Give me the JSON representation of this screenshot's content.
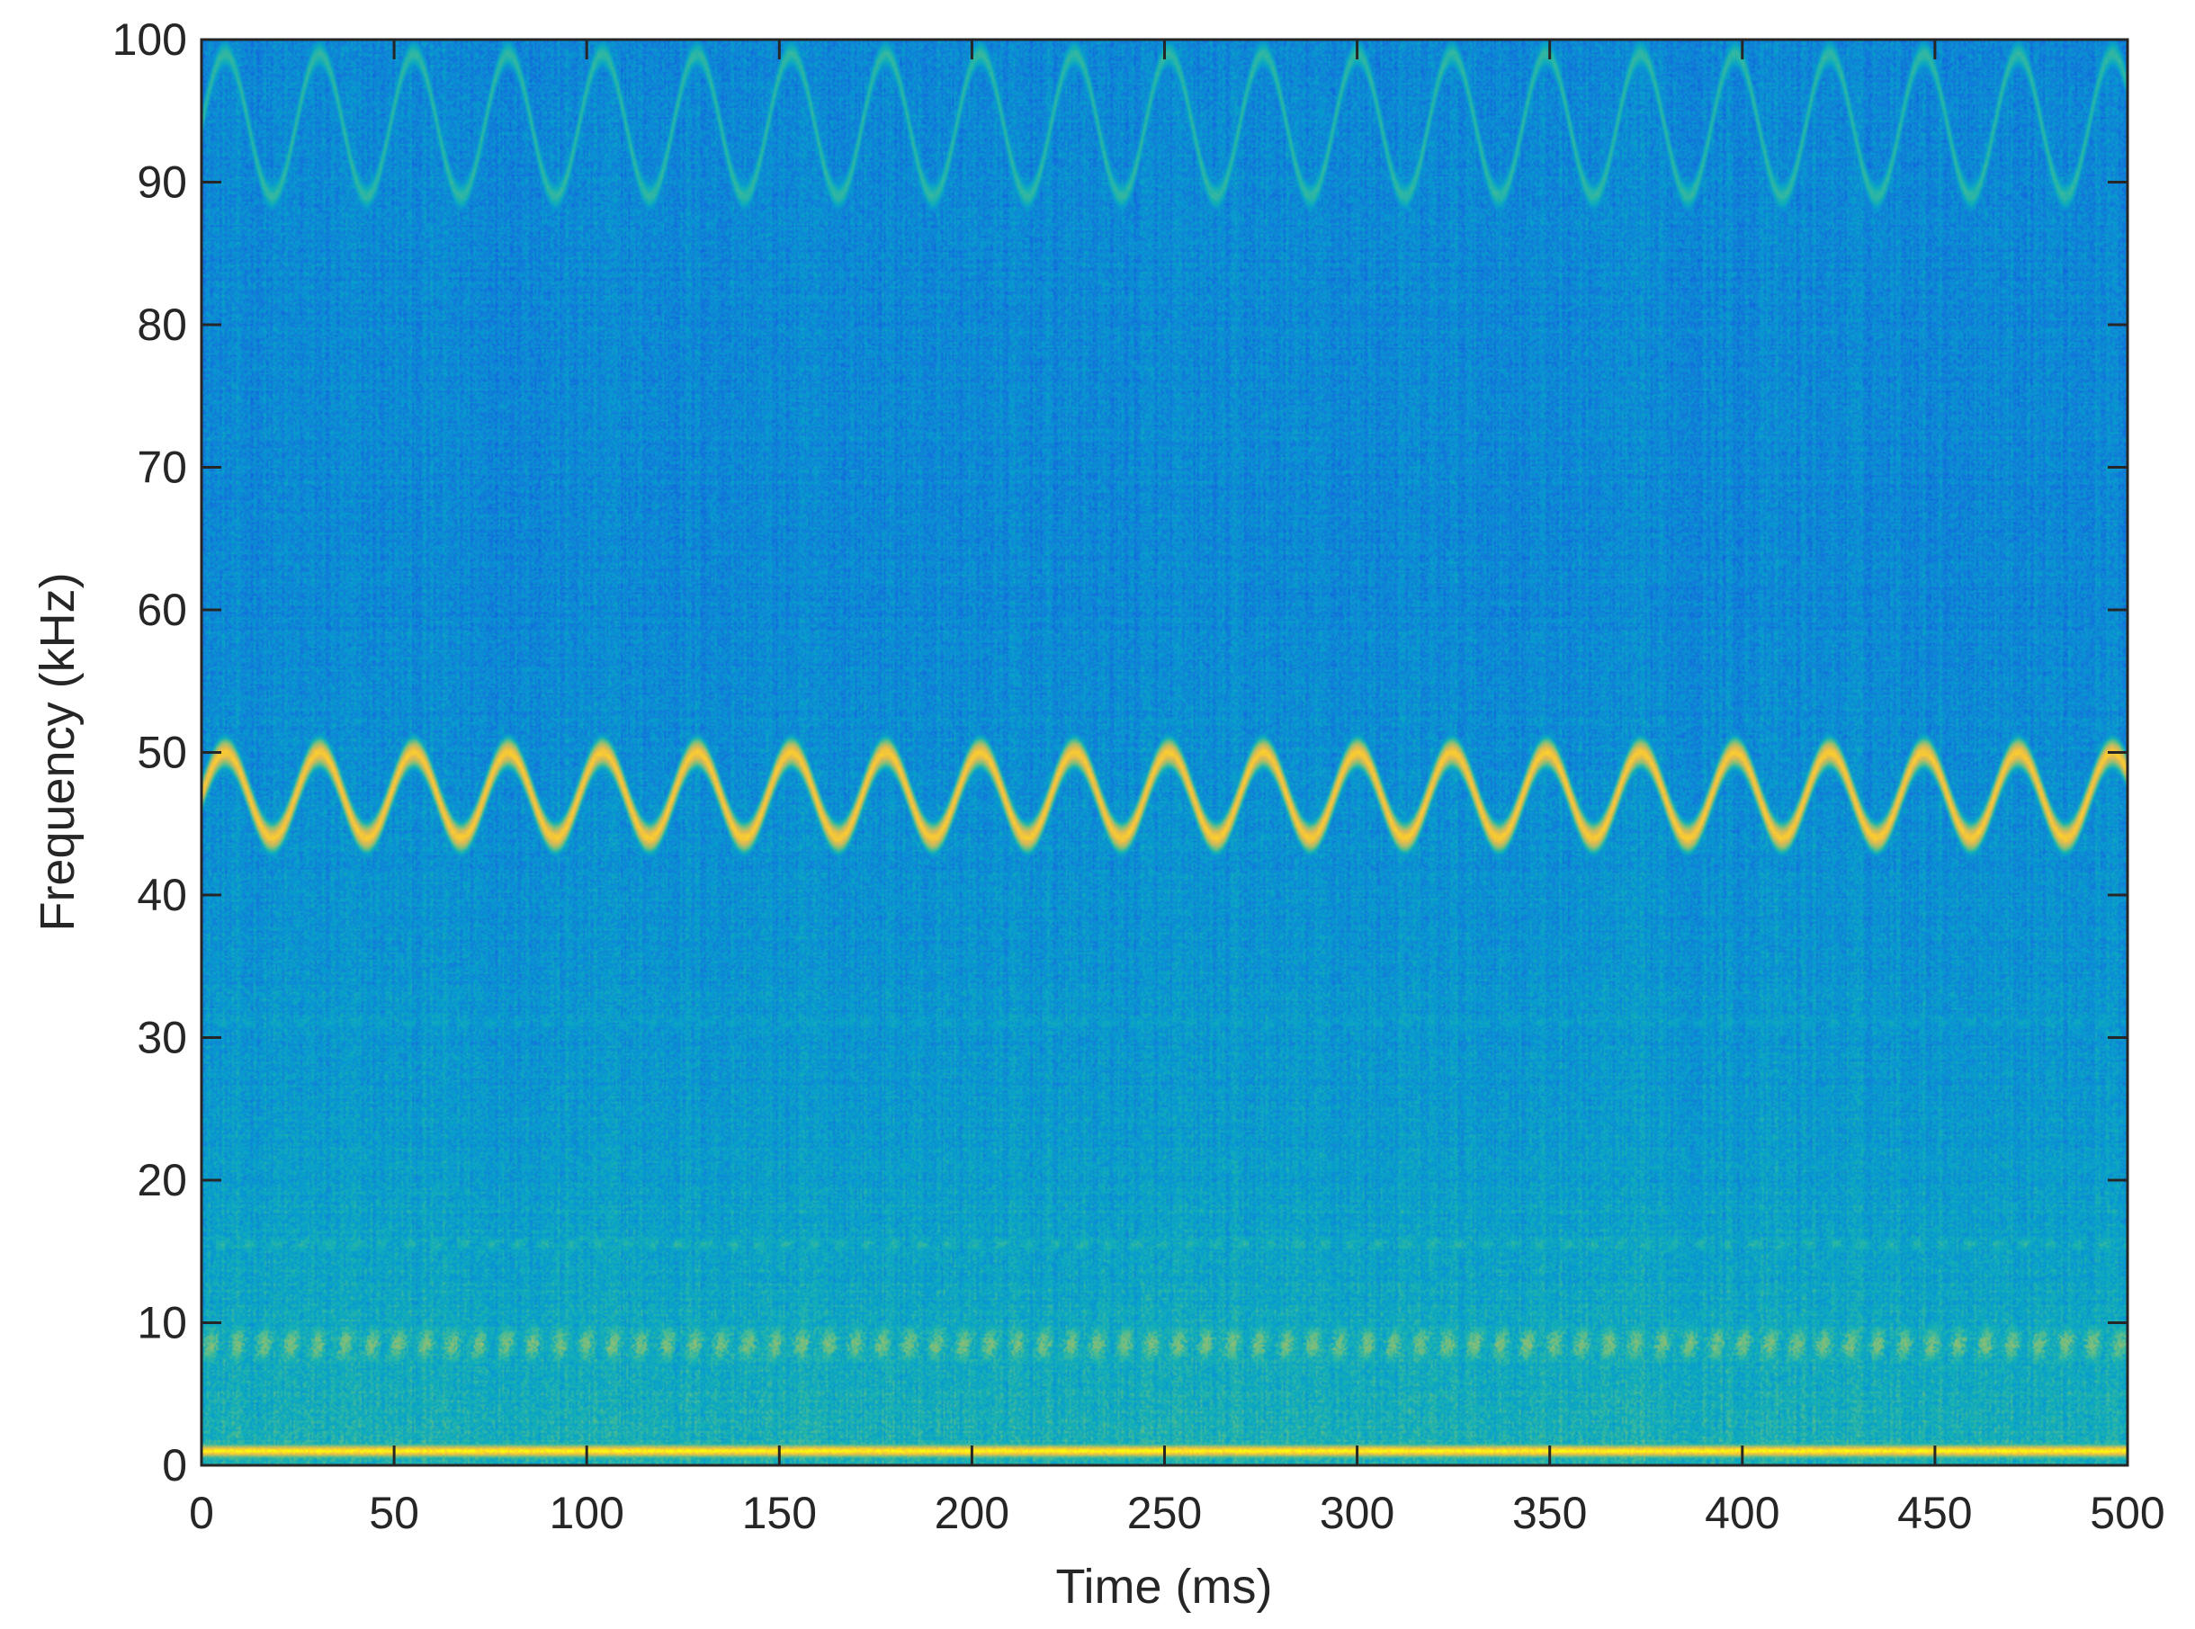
{
  "chart_data": {
    "type": "heatmap",
    "title": "",
    "xlabel": "Time (ms)",
    "ylabel": "Frequency (kHz)",
    "xlim": [
      0,
      500
    ],
    "ylim": [
      0,
      100
    ],
    "xticks": [
      0,
      50,
      100,
      150,
      200,
      250,
      300,
      350,
      400,
      450,
      500
    ],
    "yticks": [
      0,
      10,
      20,
      30,
      40,
      50,
      60,
      70,
      80,
      90,
      100
    ],
    "grid": false,
    "colormap": "parula",
    "colors": {
      "low": "#3e26a8",
      "mid": "#1fa6d6",
      "high": "#f9fb0e",
      "axis": "#262626"
    },
    "features": [
      {
        "kind": "sinusoidal-tone",
        "center_khz": 47,
        "amplitude_khz": 3,
        "period_ms": 24.5,
        "level": 0.93
      },
      {
        "kind": "sinusoidal-tone",
        "center_khz": 94,
        "amplitude_khz": 5,
        "period_ms": 24.5,
        "level": 0.55
      },
      {
        "kind": "band",
        "center_khz": 8.5,
        "width_khz": 3.5,
        "level": 0.7
      },
      {
        "kind": "band",
        "center_khz": 15.5,
        "width_khz": 1.5,
        "level": 0.55
      },
      {
        "kind": "band",
        "center_khz": 21,
        "width_khz": 1.2,
        "level": 0.42
      },
      {
        "kind": "band",
        "center_khz": 31,
        "width_khz": 1.2,
        "level": 0.45
      },
      {
        "kind": "band",
        "center_khz": 1,
        "width_khz": 1.0,
        "level": 1.0
      }
    ]
  }
}
